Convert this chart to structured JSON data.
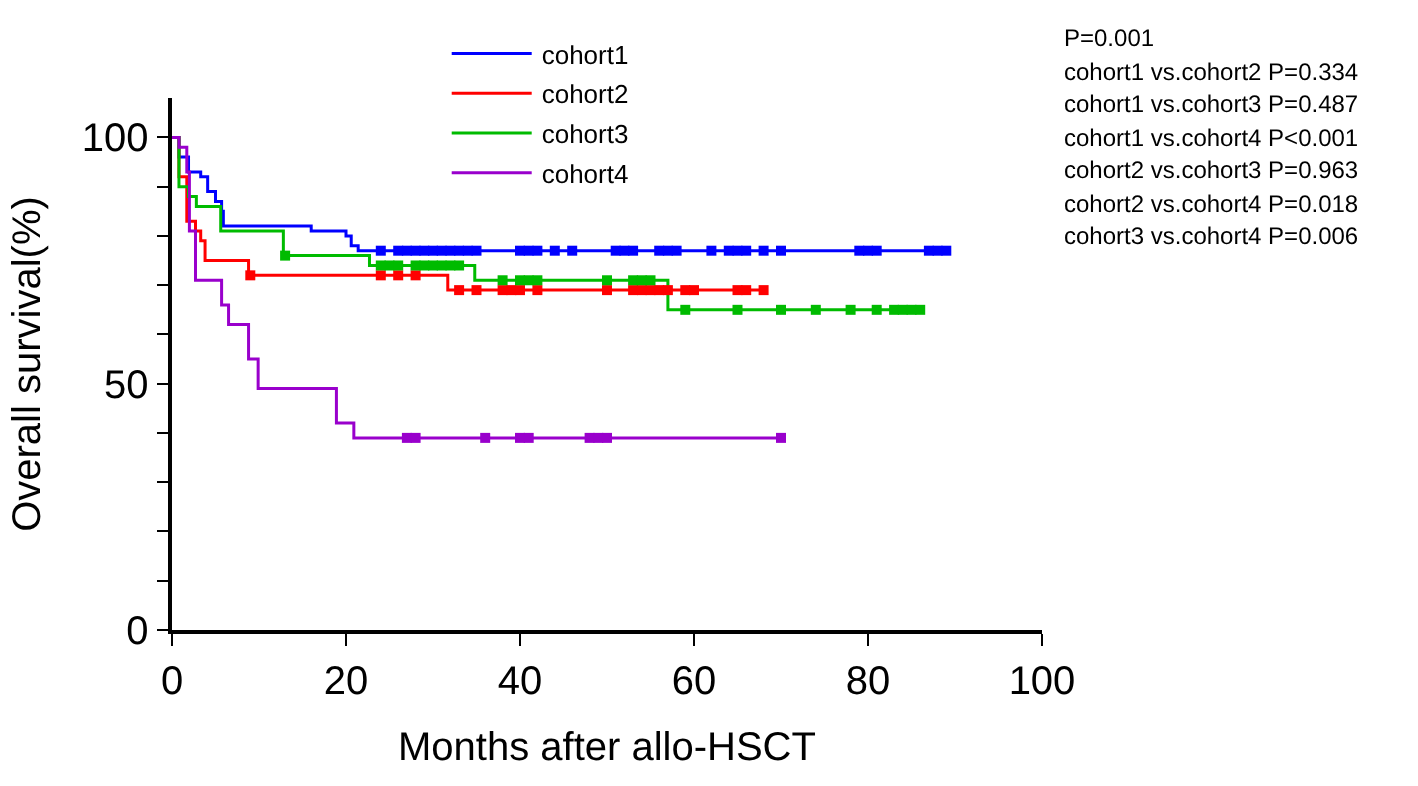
{
  "chart_data": {
    "type": "step",
    "xlabel": "Months after allo-HSCT",
    "ylabel": "Overall survival(%)",
    "xlim": [
      0,
      100
    ],
    "xticks": [
      0,
      20,
      40,
      60,
      80,
      100
    ],
    "ylim": [
      0,
      108
    ],
    "yticks": [
      0,
      {
        "value": 10,
        "label": null
      },
      {
        "value": 20,
        "label": null
      },
      {
        "value": 30,
        "label": null
      },
      {
        "value": 40,
        "label": null
      },
      50,
      {
        "value": 60,
        "label": null
      },
      {
        "value": 70,
        "label": null
      },
      {
        "value": 80,
        "label": null
      },
      {
        "value": 90,
        "label": null
      },
      100
    ],
    "legend": "top",
    "series": [
      {
        "name": "cohort1",
        "color": "#0000ff",
        "marker": "none",
        "x": [
          0,
          0.8,
          1.9,
          3.3,
          4.1,
          5,
          5.7,
          5.9,
          16,
          20,
          20.6,
          21.4,
          89
        ],
        "values": [
          100,
          96,
          93,
          92,
          89,
          87,
          85,
          82,
          81,
          80,
          78,
          77,
          77
        ]
      },
      {
        "name": "cohort2",
        "color": "#ff0000",
        "marker": "none",
        "x": [
          0,
          0.8,
          1.7,
          2.7,
          3.3,
          3.8,
          8.8,
          31.7,
          68
        ],
        "values": [
          100,
          92,
          83,
          81,
          79,
          75,
          72,
          69,
          69
        ]
      },
      {
        "name": "cohort3",
        "color": "#00bb00",
        "marker": "none",
        "x": [
          0,
          0.8,
          1.9,
          2.8,
          5.6,
          12.8,
          22.7,
          34.8,
          57,
          86.4
        ],
        "values": [
          100,
          90,
          88,
          86,
          81,
          76,
          74,
          71,
          65,
          65
        ]
      },
      {
        "name": "cohort4",
        "color": "#9900cc",
        "marker": "none",
        "x": [
          0,
          0.8,
          1.7,
          2,
          2.7,
          5.7,
          6.5,
          8.8,
          9.9,
          18.9,
          20.9,
          70
        ],
        "values": [
          100,
          98,
          93,
          81,
          71,
          66,
          62,
          55,
          49,
          42,
          39,
          39
        ]
      },
      {
        "color": "#0000ff",
        "type": "scatter",
        "marker": "square",
        "x": [
          24,
          26,
          27,
          28,
          29,
          30,
          31,
          32,
          33,
          34,
          35,
          40,
          41,
          42,
          44,
          46,
          51,
          52,
          53,
          56,
          57,
          58,
          62,
          64,
          65,
          66,
          68,
          70,
          79,
          80,
          81,
          87,
          88,
          89
        ],
        "values": [
          77,
          77,
          77,
          77,
          77,
          77,
          77,
          77,
          77,
          77,
          77,
          77,
          77,
          77,
          77,
          77,
          77,
          77,
          77,
          77,
          77,
          77,
          77,
          77,
          77,
          77,
          77,
          77,
          77,
          77,
          77,
          77,
          77,
          77
        ]
      },
      {
        "color": "#ff0000",
        "type": "scatter",
        "marker": "square",
        "x": [
          9,
          24,
          26,
          28,
          33,
          35,
          38,
          39,
          40,
          42,
          50,
          53,
          54,
          55,
          56,
          57,
          59,
          60,
          65,
          66,
          68
        ],
        "values": [
          72,
          72,
          72,
          72,
          69,
          69,
          69,
          69,
          69,
          69,
          69,
          69,
          69,
          69,
          69,
          69,
          69,
          69,
          69,
          69,
          69
        ]
      },
      {
        "color": "#00bb00",
        "type": "scatter",
        "marker": "square",
        "x": [
          13,
          24,
          25,
          26,
          28,
          29,
          30,
          31,
          32,
          33,
          38,
          40,
          41,
          42,
          50,
          53,
          54,
          55,
          59,
          65,
          70,
          74,
          78,
          81,
          83,
          84,
          85,
          86
        ],
        "values": [
          76,
          74,
          74,
          74,
          74,
          74,
          74,
          74,
          74,
          74,
          71,
          71,
          71,
          71,
          71,
          71,
          71,
          71,
          65,
          65,
          65,
          65,
          65,
          65,
          65,
          65,
          65,
          65
        ]
      },
      {
        "color": "#9900cc",
        "type": "scatter",
        "marker": "square",
        "x": [
          27,
          28,
          36,
          40,
          41,
          48,
          49,
          50,
          70
        ],
        "values": [
          39,
          39,
          39,
          39,
          39,
          39,
          39,
          39,
          39
        ]
      }
    ],
    "annotations": [
      "P=0.001",
      "cohort1 vs.cohort2 P=0.334",
      "cohort1 vs.cohort3 P=0.487",
      "cohort1 vs.cohort4 P<0.001",
      "cohort2 vs.cohort3 P=0.963",
      "cohort2 vs.cohort4 P=0.018",
      "cohort3 vs.cohort4 P=0.006"
    ]
  }
}
